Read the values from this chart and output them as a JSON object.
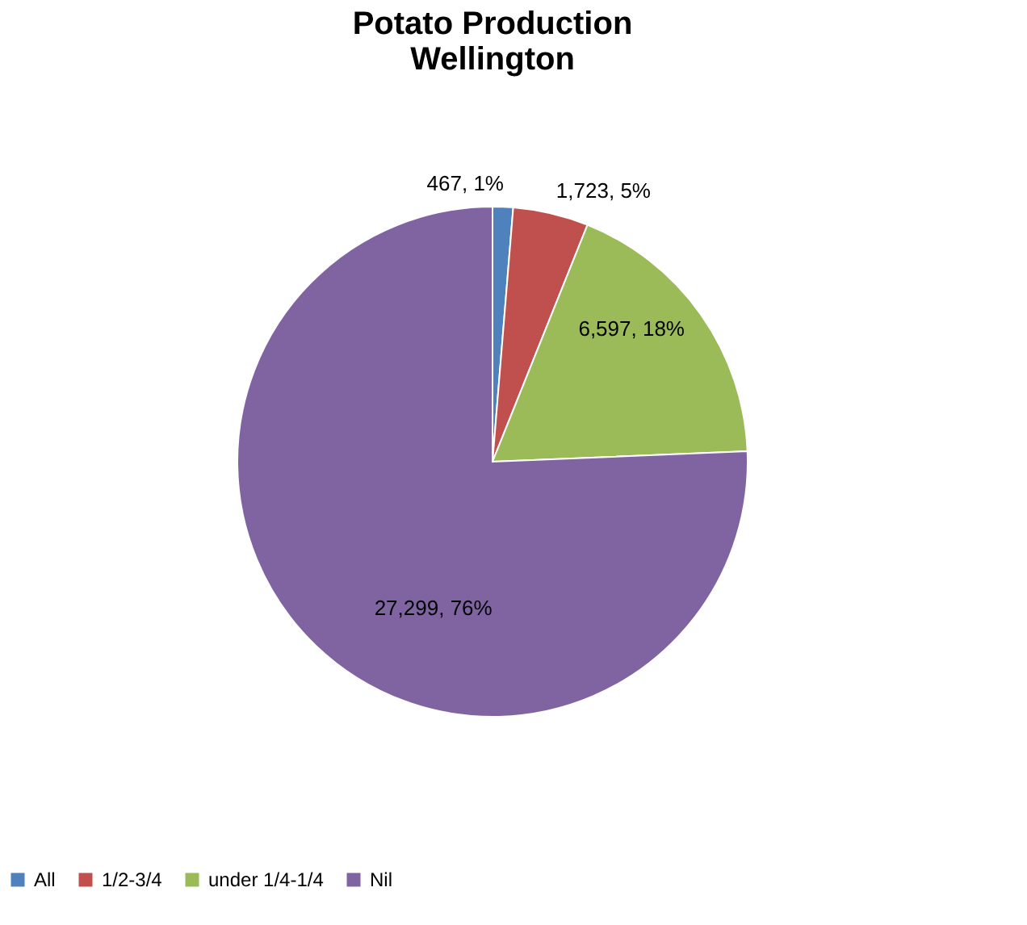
{
  "chart_data": {
    "type": "pie",
    "title": "Potato Production\nWellington",
    "categories": [
      "All",
      "1/2-3/4",
      "under 1/4-1/4",
      "Nil"
    ],
    "values": [
      467,
      1723,
      6597,
      27299
    ],
    "colors": [
      "#4f81bd",
      "#c0504d",
      "#9bbb59",
      "#8064a2"
    ],
    "value_labels": [
      "467, 1%",
      "1,723, 5%",
      "6,597, 18%",
      "27,299, 76%"
    ],
    "legend": "bottom"
  }
}
